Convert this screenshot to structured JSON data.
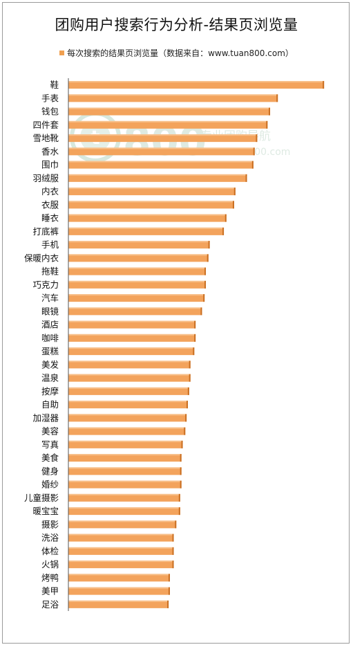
{
  "colors": {
    "bar": "#f3a35c",
    "bar_edge": "#c96f22",
    "bar_top": "#f8c08a",
    "axis": "#555555"
  },
  "watermark": {
    "logo_text": "800",
    "line1": "专业团购导航",
    "line2": "www.tuan800.com"
  },
  "chart_data": {
    "type": "bar",
    "orientation": "horizontal",
    "title": "团购用户搜索行为分析-结果页浏览量",
    "legend": {
      "label": "每次搜索的结果页浏览量（数据来自：www.tuan800.com）",
      "position": "top"
    },
    "xlabel": "",
    "ylabel": "",
    "grid": false,
    "categories": [
      "鞋",
      "手表",
      "钱包",
      "四件套",
      "雪地靴",
      "香水",
      "围巾",
      "羽绒服",
      "内衣",
      "衣服",
      "睡衣",
      "打底裤",
      "手机",
      "保暖内衣",
      "拖鞋",
      "巧克力",
      "汽车",
      "眼镜",
      "酒店",
      "咖啡",
      "蛋糕",
      "美发",
      "温泉",
      "按摩",
      "自助",
      "加湿器",
      "美容",
      "写真",
      "美食",
      "健身",
      "婚纱",
      "儿童摄影",
      "暖宝宝",
      "摄影",
      "洗浴",
      "体检",
      "火锅",
      "烤鸭",
      "美甲",
      "足浴"
    ],
    "series": [
      {
        "name": "每次搜索的结果页浏览量",
        "values": [
          9.95,
          8.15,
          7.85,
          7.75,
          7.35,
          7.25,
          7.2,
          6.95,
          6.5,
          6.45,
          6.15,
          6.05,
          5.5,
          5.45,
          5.35,
          5.35,
          5.3,
          5.2,
          4.95,
          4.95,
          4.9,
          4.75,
          4.75,
          4.7,
          4.65,
          4.6,
          4.55,
          4.45,
          4.4,
          4.4,
          4.4,
          4.35,
          4.35,
          4.2,
          4.1,
          4.1,
          4.1,
          3.95,
          3.95,
          3.9
        ]
      }
    ],
    "xlim": [
      0,
      10
    ]
  }
}
